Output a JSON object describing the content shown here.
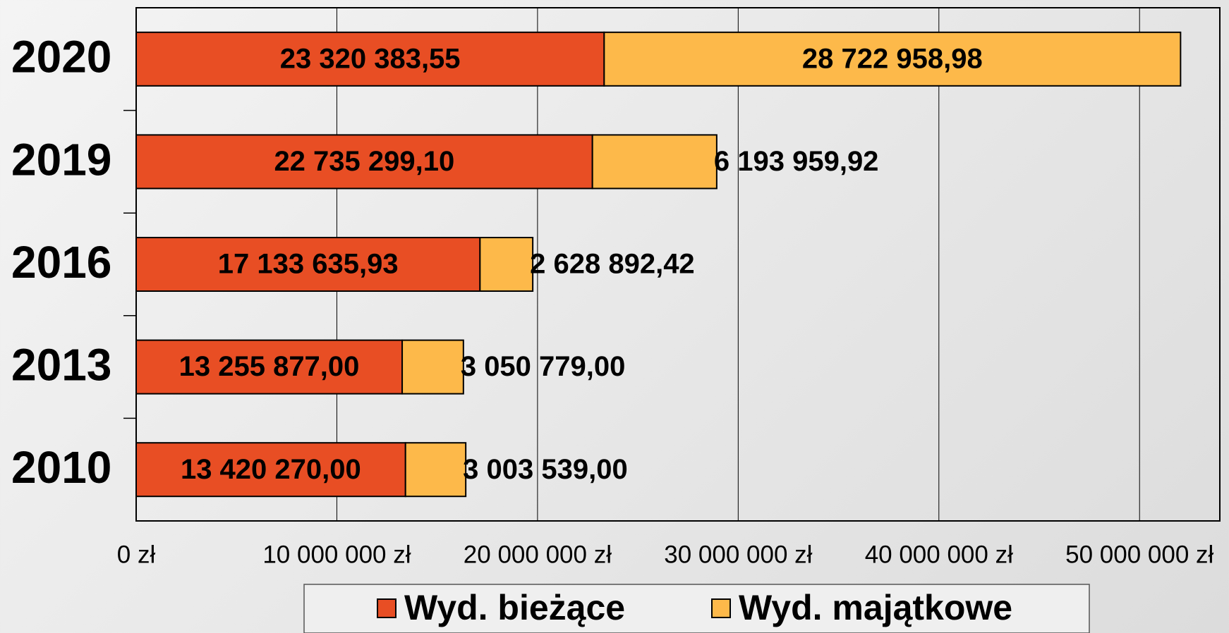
{
  "chart_data": {
    "type": "stacked-bar-horizontal",
    "categories": [
      "2020",
      "2019",
      "2016",
      "2013",
      "2010"
    ],
    "series": [
      {
        "name": "Wyd. bieżące",
        "color": "#e84e24",
        "values": [
          23320383.55,
          22735299.1,
          17133635.93,
          13255877.0,
          13420270.0
        ],
        "value_labels": [
          "23 320 383,55",
          "22 735 299,10",
          "17 133 635,93",
          "13 255 877,00",
          "13 420 270,00"
        ]
      },
      {
        "name": "Wyd. majątkowe",
        "color": "#fdb94a",
        "values": [
          28722958.98,
          6193959.92,
          2628892.42,
          3050779.0,
          3003539.0
        ],
        "value_labels": [
          "28 722 958,98",
          "6 193 959,92",
          "2 628 892,42",
          "3 050 779,00",
          "3 003 539,00"
        ]
      }
    ],
    "xlim": [
      0,
      54000000
    ],
    "xticks": [
      {
        "value": 0,
        "label": "0 zł"
      },
      {
        "value": 10000000,
        "label": "10 000 000 zł"
      },
      {
        "value": 20000000,
        "label": "20 000 000 zł"
      },
      {
        "value": 30000000,
        "label": "30 000 000 zł"
      },
      {
        "value": 40000000,
        "label": "40 000 000 zł"
      },
      {
        "value": 50000000,
        "label": "50 000 000 zł"
      }
    ],
    "grid": true,
    "legend": "bottom"
  }
}
